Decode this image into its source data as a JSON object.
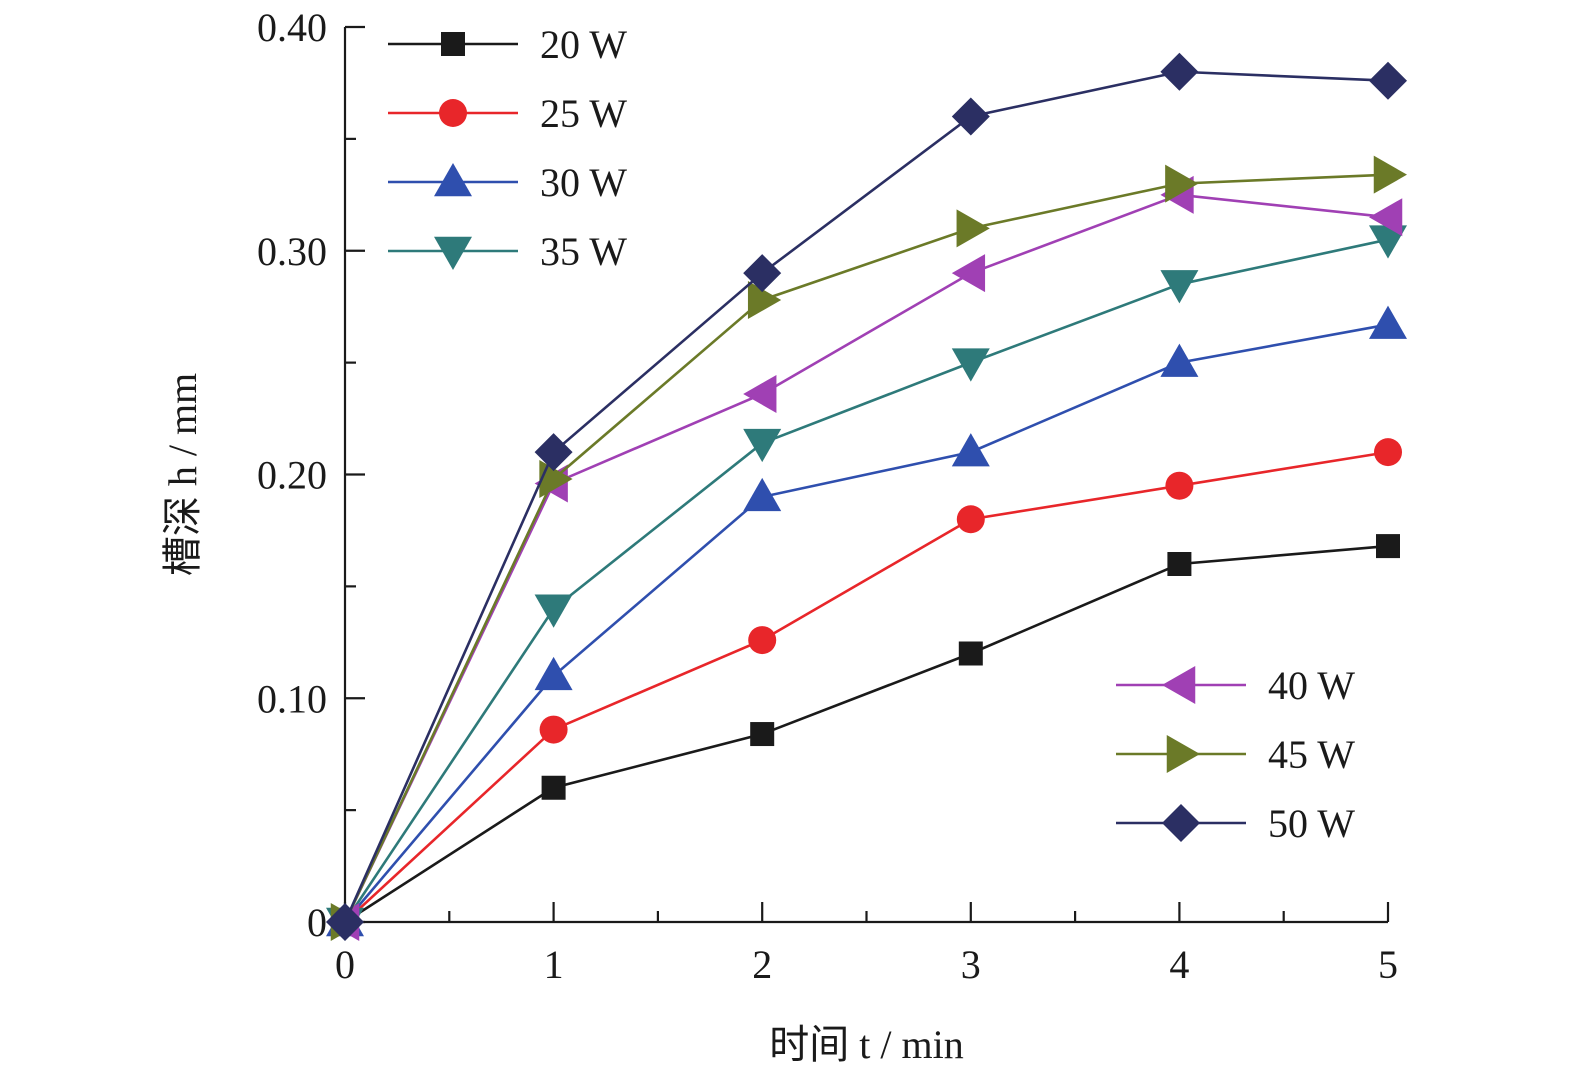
{
  "chart_data": {
    "type": "line",
    "title": "",
    "xlabel": "时间 t / min",
    "ylabel": "槽深 h / mm",
    "xlim": [
      0,
      5
    ],
    "ylim": [
      0,
      0.4
    ],
    "x_ticks": [
      "0",
      "1",
      "2",
      "3",
      "4",
      "5"
    ],
    "y_ticks": [
      "0",
      "0.10",
      "0.20",
      "0.30",
      "0.40"
    ],
    "x": [
      0,
      1,
      2,
      3,
      4,
      5
    ],
    "grid": false,
    "legend": [
      {
        "placement": "top-left",
        "series": [
          "20 W",
          "25 W",
          "30 W",
          "35 W"
        ]
      },
      {
        "placement": "bottom-right",
        "series": [
          "40 W",
          "45 W",
          "50 W"
        ]
      }
    ],
    "series": [
      {
        "name": "20 W",
        "marker": "square",
        "color": "#1a1a1a",
        "values": [
          0,
          0.06,
          0.084,
          0.12,
          0.16,
          0.168
        ]
      },
      {
        "name": "25 W",
        "marker": "circle",
        "color": "#e8262a",
        "values": [
          0,
          0.086,
          0.126,
          0.18,
          0.195,
          0.21
        ]
      },
      {
        "name": "30 W",
        "marker": "triangle-up",
        "color": "#2f4fae",
        "values": [
          0,
          0.11,
          0.19,
          0.21,
          0.25,
          0.267
        ]
      },
      {
        "name": "35 W",
        "marker": "triangle-down",
        "color": "#2e7a7a",
        "values": [
          0,
          0.14,
          0.214,
          0.25,
          0.285,
          0.305
        ]
      },
      {
        "name": "40 W",
        "marker": "triangle-left",
        "color": "#a040b4",
        "values": [
          0,
          0.196,
          0.236,
          0.29,
          0.325,
          0.315
        ]
      },
      {
        "name": "45 W",
        "marker": "triangle-right",
        "color": "#6b7a28",
        "values": [
          0,
          0.198,
          0.278,
          0.31,
          0.33,
          0.334
        ]
      },
      {
        "name": "50 W",
        "marker": "diamond",
        "color": "#2b2f63",
        "values": [
          0,
          0.21,
          0.29,
          0.36,
          0.38,
          0.376
        ]
      }
    ]
  }
}
